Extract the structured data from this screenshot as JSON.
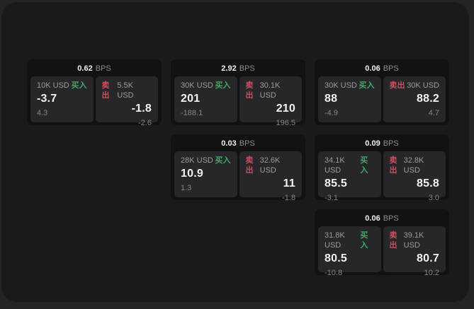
{
  "labels": {
    "bps_unit": "BPS",
    "buy": "买入",
    "sell": "卖出"
  },
  "colors": {
    "page_bg": "#242424",
    "panel_bg": "#1a1a1b",
    "card_bg": "#121213",
    "subpanel_bg": "#27272a",
    "buy_green": "#3fa968",
    "sell_red": "#c9505e",
    "value_white": "#f2f2f2",
    "muted_gray": "#8c8c8c"
  },
  "cards": [
    {
      "bps": "0.62",
      "buy": {
        "amount": "10K USD",
        "price": "-3.7",
        "sub": "4.3"
      },
      "sell": {
        "amount": "5.5K USD",
        "price": "-1.8",
        "sub": "-2.6"
      }
    },
    {
      "bps": "2.92",
      "buy": {
        "amount": "30K USD",
        "price": "201",
        "sub": "-188.1"
      },
      "sell": {
        "amount": "30.1K USD",
        "price": "210",
        "sub": "196.5"
      }
    },
    {
      "bps": "0.06",
      "buy": {
        "amount": "30K USD",
        "price": "88",
        "sub": "-4.9"
      },
      "sell": {
        "amount": "30K USD",
        "price": "88.2",
        "sub": "4.7"
      }
    },
    {
      "bps": "0.03",
      "buy": {
        "amount": "28K USD",
        "price": "10.9",
        "sub": "1.3"
      },
      "sell": {
        "amount": "32.6K USD",
        "price": "11",
        "sub": "-1.8"
      }
    },
    {
      "bps": "0.09",
      "buy": {
        "amount": "34.1K USD",
        "price": "85.5",
        "sub": "-3.1"
      },
      "sell": {
        "amount": "32.8K USD",
        "price": "85.8",
        "sub": "3.0"
      }
    },
    {
      "bps": "0.06",
      "buy": {
        "amount": "31.8K USD",
        "price": "80.5",
        "sub": "-10.8"
      },
      "sell": {
        "amount": "39.1K USD",
        "price": "80.7",
        "sub": "10.2"
      }
    }
  ]
}
